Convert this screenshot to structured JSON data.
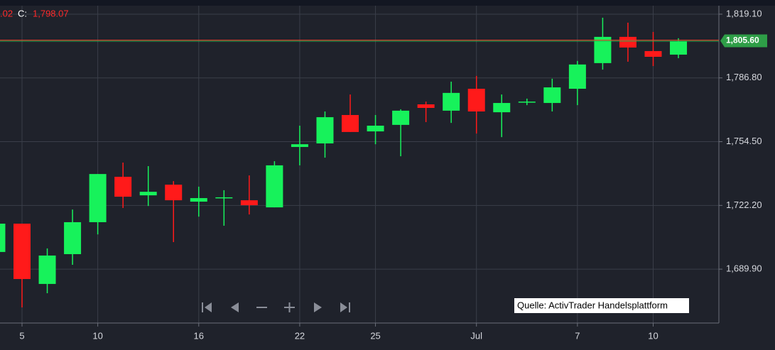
{
  "chart_data": {
    "type": "candlestick",
    "legend_text": [
      ".02",
      "C:",
      "1,798.07"
    ],
    "source": "Quelle: ActivTrader Handelsplattform",
    "categories": [
      null,
      "5",
      null,
      null,
      "10",
      null,
      null,
      null,
      "16",
      null,
      null,
      null,
      "22",
      null,
      null,
      "25",
      null,
      null,
      null,
      "Jul",
      null,
      null,
      null,
      "7",
      null,
      null,
      "10",
      null
    ],
    "open": [
      1698.6,
      1712.95,
      1682.4,
      1697.5,
      1713.7,
      1736.7,
      1727.3,
      1732.7,
      1724.1,
      1725.9,
      1724.8,
      1721.2,
      1751.8,
      1753.6,
      1768.0,
      1759.7,
      1763.0,
      1773.4,
      1770.2,
      1781.3,
      1769.4,
      1774.5,
      1774.1,
      1781.3,
      1794.3,
      1807.6,
      1800.4,
      1798.6
    ],
    "high": [
      1712.95,
      1712.95,
      1700.4,
      1720.1,
      1738.1,
      1743.9,
      1742.1,
      1734.5,
      1731.7,
      1729.9,
      1737.4,
      1744.6,
      1762.6,
      1769.8,
      1778.4,
      1768.0,
      1770.9,
      1774.8,
      1784.9,
      1787.8,
      1778.4,
      1776.3,
      1786.4,
      1795.4,
      1817.3,
      1814.8,
      1810.1,
      1806.9
    ],
    "low": [
      1698.6,
      1670.5,
      1677.7,
      1692.1,
      1707.5,
      1720.9,
      1721.9,
      1703.6,
      1716.5,
      1711.9,
      1717.6,
      1721.2,
      1742.5,
      1746.4,
      1759.4,
      1753.2,
      1747.1,
      1764.4,
      1764.0,
      1758.6,
      1756.8,
      1773.0,
      1769.8,
      1773.0,
      1791.0,
      1795.0,
      1792.8,
      1796.8
    ],
    "close": [
      1712.95,
      1684.9,
      1696.8,
      1713.7,
      1738.1,
      1726.6,
      1729.1,
      1724.8,
      1725.9,
      1726.3,
      1722.3,
      1742.5,
      1753.2,
      1766.9,
      1759.4,
      1762.6,
      1770.2,
      1771.6,
      1779.2,
      1769.8,
      1774.1,
      1774.8,
      1782.0,
      1793.6,
      1807.6,
      1802.2,
      1797.5,
      1805.6
    ],
    "up_color": "#17f25b",
    "down_color": "#ff1a1a",
    "ylim": [
      1662.6,
      1823.4
    ],
    "yticks": [
      {
        "value": 1689.9,
        "label": "1,689.90"
      },
      {
        "value": 1722.2,
        "label": "1,722.20"
      },
      {
        "value": 1754.5,
        "label": "1,754.50"
      },
      {
        "value": 1786.8,
        "label": "1,786.80"
      },
      {
        "value": 1819.1,
        "label": "1,819.10"
      }
    ],
    "grid": true,
    "last_price": {
      "value": 1805.6,
      "label": "1,805.60"
    }
  }
}
